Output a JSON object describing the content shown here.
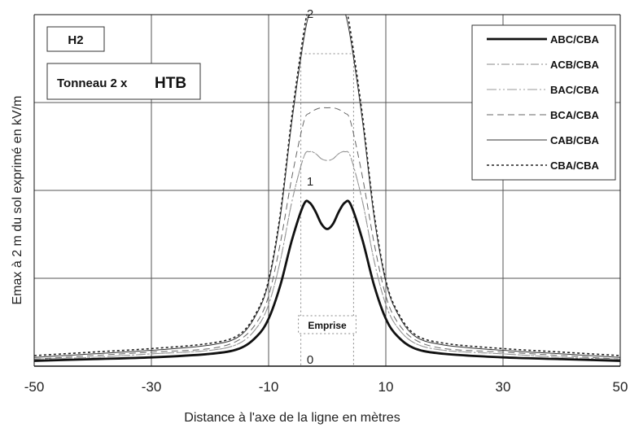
{
  "chart_data": {
    "type": "line",
    "title": "",
    "xlabel": "Distance à l'axe de la ligne en mètres",
    "ylabel": "Emax à 2 m du sol exprimé en kV/m",
    "xlim": [
      -50,
      50
    ],
    "ylim": [
      0,
      2
    ],
    "x_ticks": [
      "-50",
      "-30",
      "-10",
      "10",
      "30",
      "50"
    ],
    "x_tick_values": [
      -50,
      -30,
      -10,
      10,
      30,
      50
    ],
    "y_ticks": [
      "0",
      "1",
      "2"
    ],
    "y_tick_values": [
      0,
      1,
      2
    ],
    "grid": true,
    "legend_position": "top-right",
    "annotations": {
      "label_h2": "H2",
      "label_tonneau": "Tonneau 2 x",
      "label_htb": "HTB",
      "emprise": "Emprise"
    },
    "emprise_range": [
      -4.5,
      4.5
    ],
    "x": [
      -50,
      -40,
      -30,
      -20,
      -15,
      -12,
      -10,
      -8,
      -6,
      -4,
      -3,
      -2,
      -1,
      0,
      1,
      2,
      3,
      4,
      6,
      8,
      10,
      12,
      15,
      20,
      30,
      40,
      50
    ],
    "series": [
      {
        "name": "ABC/CBA",
        "style": "thick",
        "values": [
          0.03,
          0.04,
          0.05,
          0.07,
          0.1,
          0.17,
          0.27,
          0.46,
          0.72,
          0.92,
          0.93,
          0.88,
          0.81,
          0.78,
          0.81,
          0.88,
          0.93,
          0.92,
          0.72,
          0.46,
          0.27,
          0.17,
          0.1,
          0.07,
          0.05,
          0.04,
          0.03
        ]
      },
      {
        "name": "ACB/CBA",
        "style": "dashdot",
        "values": [
          0.04,
          0.05,
          0.07,
          0.09,
          0.13,
          0.22,
          0.35,
          0.6,
          0.94,
          1.19,
          1.22,
          1.21,
          1.18,
          1.17,
          1.18,
          1.21,
          1.22,
          1.19,
          0.94,
          0.6,
          0.35,
          0.22,
          0.13,
          0.09,
          0.07,
          0.05,
          0.04
        ]
      },
      {
        "name": "BAC/CBA",
        "style": "dashdotdot",
        "values": [
          0.04,
          0.05,
          0.07,
          0.09,
          0.13,
          0.22,
          0.35,
          0.6,
          0.94,
          1.19,
          1.22,
          1.21,
          1.18,
          1.17,
          1.18,
          1.21,
          1.22,
          1.19,
          0.94,
          0.6,
          0.35,
          0.22,
          0.13,
          0.09,
          0.07,
          0.05,
          0.04
        ]
      },
      {
        "name": "BCA/CBA",
        "style": "dashed",
        "values": [
          0.04,
          0.06,
          0.08,
          0.1,
          0.15,
          0.25,
          0.4,
          0.7,
          1.08,
          1.39,
          1.44,
          1.46,
          1.47,
          1.47,
          1.47,
          1.46,
          1.44,
          1.39,
          1.08,
          0.7,
          0.4,
          0.25,
          0.15,
          0.1,
          0.08,
          0.06,
          0.04
        ]
      },
      {
        "name": "CAB/CBA",
        "style": "thin",
        "values": [
          0.05,
          0.07,
          0.09,
          0.12,
          0.17,
          0.3,
          0.48,
          0.85,
          1.4,
          1.86,
          2.02,
          2.14,
          2.22,
          2.24,
          2.22,
          2.14,
          2.02,
          1.86,
          1.4,
          0.85,
          0.48,
          0.3,
          0.17,
          0.12,
          0.09,
          0.07,
          0.05
        ]
      },
      {
        "name": "CBA/CBA",
        "style": "dotted",
        "values": [
          0.06,
          0.08,
          0.1,
          0.13,
          0.18,
          0.31,
          0.49,
          0.87,
          1.43,
          1.9,
          2.07,
          2.19,
          2.27,
          2.29,
          2.27,
          2.19,
          2.07,
          1.9,
          1.43,
          0.87,
          0.49,
          0.31,
          0.18,
          0.13,
          0.1,
          0.08,
          0.06
        ]
      }
    ]
  }
}
